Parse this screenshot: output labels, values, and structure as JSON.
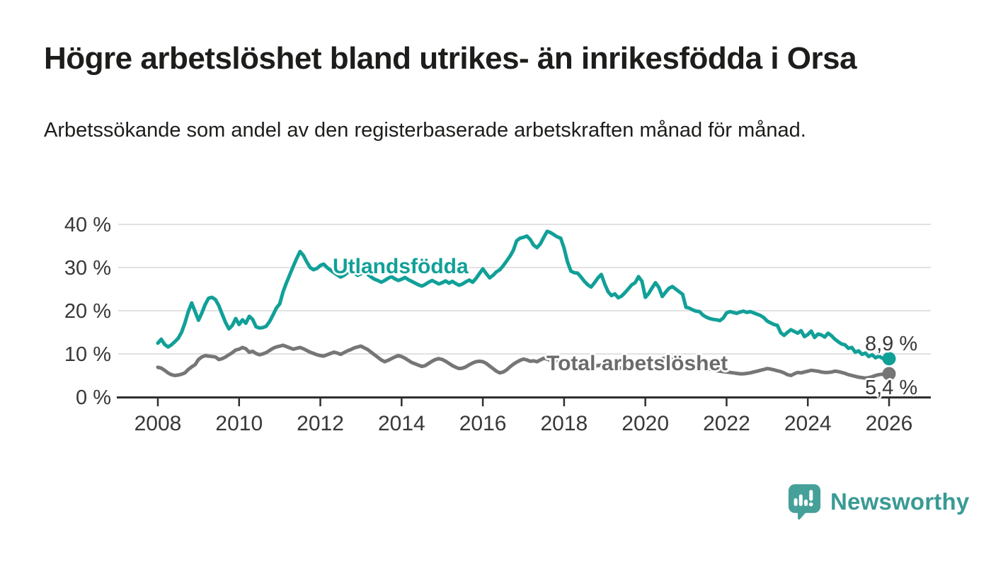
{
  "header": {
    "title": "Högre arbetslöshet bland utrikes- än inrikesfödda i Orsa",
    "subtitle": "Arbetssökande som andel av den registerbaserade arbetskraften månad för månad."
  },
  "chart_data": {
    "type": "line",
    "title": "",
    "xlabel": "",
    "ylabel": "",
    "x_start_month": "2008-01",
    "x_end_month": "2026-01",
    "x_step_months": 1,
    "x_tick_years": [
      2008,
      2010,
      2012,
      2014,
      2016,
      2018,
      2020,
      2022,
      2024,
      2026
    ],
    "y_tick_values": [
      0,
      10,
      20,
      30,
      40
    ],
    "y_tick_labels": [
      "0 %",
      "10 %",
      "20 %",
      "30 %",
      "40 %"
    ],
    "y_gridlines": [
      10,
      20,
      30,
      40
    ],
    "ylim": [
      0,
      40
    ],
    "grid": "horizontal",
    "legend_position": "inline-labels",
    "colors": {
      "axis": "#2f2f2f",
      "gridline": "#d9d9d9",
      "tick_text": "#383838"
    },
    "series": [
      {
        "name": "Utlandsfödda",
        "color": "#11a098",
        "end_label": "8,9 %",
        "end_value": 8.9,
        "values": [
          12.5,
          13.4,
          12.2,
          11.6,
          12.1,
          12.8,
          13.6,
          15.0,
          17.2,
          19.8,
          21.8,
          19.8,
          17.8,
          19.5,
          21.5,
          22.9,
          23.1,
          22.6,
          21.2,
          19.2,
          17.3,
          15.8,
          16.6,
          18.2,
          16.8,
          17.9,
          17.1,
          18.7,
          18.0,
          16.3,
          16.0,
          16.1,
          16.4,
          17.5,
          19.0,
          20.6,
          21.6,
          24.4,
          26.5,
          28.4,
          30.3,
          32.1,
          33.7,
          32.8,
          31.3,
          30.0,
          29.5,
          29.8,
          30.5,
          30.8,
          30.0,
          29.4,
          28.8,
          28.3,
          27.8,
          28.2,
          28.8,
          29.3,
          28.8,
          28.2,
          28.6,
          29.0,
          28.4,
          27.8,
          27.3,
          27.0,
          26.6,
          27.0,
          27.5,
          27.9,
          27.4,
          27.0,
          27.3,
          27.7,
          27.2,
          26.8,
          26.4,
          26.0,
          25.7,
          26.1,
          26.6,
          27.0,
          26.6,
          26.2,
          26.5,
          26.9,
          26.4,
          26.8,
          26.3,
          25.9,
          26.2,
          26.7,
          27.1,
          26.6,
          27.5,
          28.6,
          29.7,
          28.6,
          27.6,
          28.2,
          29.0,
          29.5,
          30.4,
          31.5,
          32.6,
          34.0,
          36.2,
          36.8,
          37.0,
          37.3,
          36.5,
          35.2,
          34.6,
          35.5,
          37.0,
          38.4,
          38.1,
          37.6,
          37.1,
          36.8,
          34.5,
          31.3,
          29.2,
          28.8,
          28.7,
          27.8,
          26.8,
          26.0,
          25.5,
          26.5,
          27.6,
          28.4,
          26.2,
          24.4,
          23.5,
          23.9,
          23.0,
          23.4,
          24.2,
          25.1,
          26.0,
          26.5,
          27.9,
          26.8,
          23.1,
          24.0,
          25.3,
          26.5,
          25.4,
          23.3,
          24.3,
          25.2,
          25.6,
          25.0,
          24.4,
          23.8,
          20.8,
          20.6,
          20.2,
          19.9,
          19.8,
          19.0,
          18.5,
          18.2,
          18.0,
          17.9,
          17.7,
          18.3,
          19.5,
          19.8,
          19.6,
          19.4,
          19.7,
          19.9,
          19.6,
          19.8,
          19.5,
          19.2,
          18.9,
          18.4,
          17.6,
          17.2,
          16.8,
          16.6,
          14.9,
          14.3,
          15.0,
          15.6,
          15.2,
          14.8,
          15.4,
          14.0,
          14.5,
          15.3,
          13.8,
          14.6,
          14.4,
          13.9,
          14.8,
          14.2,
          13.4,
          12.8,
          12.3,
          12.1,
          11.3,
          11.5,
          10.4,
          10.7,
          9.9,
          10.2,
          9.4,
          9.8,
          9.1,
          9.5,
          9.0,
          9.2,
          8.9
        ]
      },
      {
        "name": "Total arbetslöshet",
        "color": "#767676",
        "end_label": "5,4 %",
        "end_value": 5.4,
        "values": [
          6.9,
          6.7,
          6.2,
          5.6,
          5.2,
          5.0,
          5.1,
          5.3,
          5.6,
          6.4,
          7.0,
          7.5,
          8.7,
          9.3,
          9.6,
          9.5,
          9.4,
          9.3,
          8.7,
          8.9,
          9.3,
          9.8,
          10.3,
          10.9,
          11.1,
          11.5,
          11.2,
          10.4,
          10.6,
          10.1,
          9.8,
          10.0,
          10.3,
          10.8,
          11.3,
          11.6,
          11.8,
          12.0,
          11.7,
          11.4,
          11.1,
          11.3,
          11.5,
          11.2,
          10.8,
          10.4,
          10.1,
          9.8,
          9.6,
          9.5,
          9.8,
          10.1,
          10.4,
          10.2,
          9.9,
          10.3,
          10.7,
          11.0,
          11.4,
          11.6,
          11.8,
          11.4,
          11.0,
          10.4,
          9.8,
          9.2,
          8.6,
          8.2,
          8.5,
          8.9,
          9.3,
          9.6,
          9.4,
          9.0,
          8.5,
          8.0,
          7.7,
          7.4,
          7.1,
          7.3,
          7.8,
          8.3,
          8.7,
          8.9,
          8.7,
          8.3,
          7.8,
          7.3,
          6.9,
          6.6,
          6.7,
          7.0,
          7.5,
          7.9,
          8.2,
          8.3,
          8.2,
          7.8,
          7.2,
          6.6,
          6.0,
          5.6,
          5.8,
          6.3,
          7.0,
          7.6,
          8.1,
          8.5,
          8.8,
          8.6,
          8.3,
          8.4,
          8.2,
          8.6,
          9.0,
          8.8,
          8.5,
          8.3,
          8.2,
          8.4,
          8.2,
          8.0,
          7.7,
          7.4,
          7.1,
          6.9,
          6.7,
          6.8,
          7.0,
          7.2,
          7.3,
          7.4,
          7.3,
          7.2,
          7.0,
          6.9,
          6.8,
          6.7,
          6.8,
          6.9,
          7.0,
          7.1,
          7.2,
          7.3,
          7.5,
          7.7,
          8.0,
          8.4,
          8.7,
          8.9,
          9.0,
          8.9,
          8.8,
          8.6,
          8.4,
          8.2,
          8.0,
          7.8,
          7.6,
          7.3,
          7.1,
          6.9,
          6.7,
          6.5,
          6.3,
          6.1,
          6.0,
          5.9,
          5.8,
          5.7,
          5.6,
          5.5,
          5.4,
          5.4,
          5.5,
          5.6,
          5.8,
          6.0,
          6.2,
          6.4,
          6.6,
          6.5,
          6.3,
          6.1,
          5.9,
          5.6,
          5.2,
          5.0,
          5.4,
          5.7,
          5.6,
          5.8,
          6.0,
          6.2,
          6.1,
          6.0,
          5.8,
          5.7,
          5.7,
          5.8,
          6.0,
          5.9,
          5.7,
          5.5,
          5.2,
          5.0,
          4.8,
          4.6,
          4.5,
          4.4,
          4.5,
          4.7,
          5.0,
          5.2,
          5.3,
          5.3,
          5.4
        ]
      }
    ]
  },
  "footer": {
    "brand": "Newsworthy",
    "brand_color": "#3a9a94",
    "logo_icon": "bar-chart-speech-bubble"
  }
}
